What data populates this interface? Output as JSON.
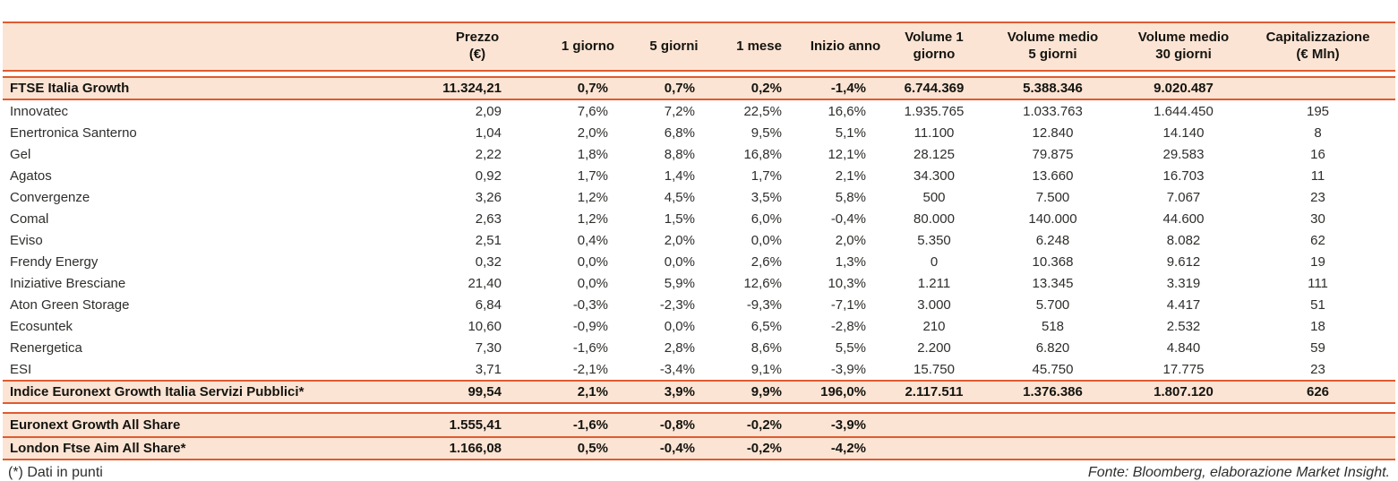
{
  "colors": {
    "accent": "#df5b2f",
    "row_highlight": "#fce4d4"
  },
  "table": {
    "columns": [
      {
        "key": "name",
        "label": ""
      },
      {
        "key": "prezzo",
        "label": "Prezzo\n(€)"
      },
      {
        "key": "giorno-1",
        "label": "1 giorno"
      },
      {
        "key": "giorni-5",
        "label": "5 giorni"
      },
      {
        "key": "mese-1",
        "label": "1 mese"
      },
      {
        "key": "inizio-anno",
        "label": "Inizio anno"
      },
      {
        "key": "volume-1-giorno",
        "label": "Volume 1\ngiorno"
      },
      {
        "key": "volume-medio-5-giorni",
        "label": "Volume medio\n5 giorni"
      },
      {
        "key": "volume-medio-30-giorni",
        "label": "Volume medio\n30 giorni"
      },
      {
        "key": "capitalizzazione",
        "label": "Capitalizzazione\n(€ Mln)"
      }
    ],
    "body": [
      {
        "name": "FTSE Italia Growth",
        "highlight": true,
        "cells": [
          "11.324,21",
          "0,7%",
          "0,7%",
          "0,2%",
          "-1,4%",
          "6.744.369",
          "5.388.346",
          "9.020.487",
          ""
        ]
      },
      {
        "name": "Innovatec",
        "highlight": false,
        "cells": [
          "2,09",
          "7,6%",
          "7,2%",
          "22,5%",
          "16,6%",
          "1.935.765",
          "1.033.763",
          "1.644.450",
          "195"
        ]
      },
      {
        "name": "Enertronica Santerno",
        "highlight": false,
        "cells": [
          "1,04",
          "2,0%",
          "6,8%",
          "9,5%",
          "5,1%",
          "11.100",
          "12.840",
          "14.140",
          "8"
        ]
      },
      {
        "name": "Gel",
        "highlight": false,
        "cells": [
          "2,22",
          "1,8%",
          "8,8%",
          "16,8%",
          "12,1%",
          "28.125",
          "79.875",
          "29.583",
          "16"
        ]
      },
      {
        "name": "Agatos",
        "highlight": false,
        "cells": [
          "0,92",
          "1,7%",
          "1,4%",
          "1,7%",
          "2,1%",
          "34.300",
          "13.660",
          "16.703",
          "11"
        ]
      },
      {
        "name": "Convergenze",
        "highlight": false,
        "cells": [
          "3,26",
          "1,2%",
          "4,5%",
          "3,5%",
          "5,8%",
          "500",
          "7.500",
          "7.067",
          "23"
        ]
      },
      {
        "name": "Comal",
        "highlight": false,
        "cells": [
          "2,63",
          "1,2%",
          "1,5%",
          "6,0%",
          "-0,4%",
          "80.000",
          "140.000",
          "44.600",
          "30"
        ]
      },
      {
        "name": "Eviso",
        "highlight": false,
        "cells": [
          "2,51",
          "0,4%",
          "2,0%",
          "0,0%",
          "2,0%",
          "5.350",
          "6.248",
          "8.082",
          "62"
        ]
      },
      {
        "name": "Frendy Energy",
        "highlight": false,
        "cells": [
          "0,32",
          "0,0%",
          "0,0%",
          "2,6%",
          "1,3%",
          "0",
          "10.368",
          "9.612",
          "19"
        ]
      },
      {
        "name": "Iniziative Bresciane",
        "highlight": false,
        "cells": [
          "21,40",
          "0,0%",
          "5,9%",
          "12,6%",
          "10,3%",
          "1.211",
          "13.345",
          "3.319",
          "111"
        ]
      },
      {
        "name": "Aton Green Storage",
        "highlight": false,
        "cells": [
          "6,84",
          "-0,3%",
          "-2,3%",
          "-9,3%",
          "-7,1%",
          "3.000",
          "5.700",
          "4.417",
          "51"
        ]
      },
      {
        "name": "Ecosuntek",
        "highlight": false,
        "cells": [
          "10,60",
          "-0,9%",
          "0,0%",
          "6,5%",
          "-2,8%",
          "210",
          "518",
          "2.532",
          "18"
        ]
      },
      {
        "name": "Renergetica",
        "highlight": false,
        "cells": [
          "7,30",
          "-1,6%",
          "2,8%",
          "8,6%",
          "5,5%",
          "2.200",
          "6.820",
          "4.840",
          "59"
        ]
      },
      {
        "name": "ESI",
        "highlight": false,
        "cells": [
          "3,71",
          "-2,1%",
          "-3,4%",
          "9,1%",
          "-3,9%",
          "15.750",
          "45.750",
          "17.775",
          "23"
        ]
      },
      {
        "name": "Indice Euronext Growth Italia Servizi Pubblici*",
        "highlight": true,
        "cells": [
          "99,54",
          "2,1%",
          "3,9%",
          "9,9%",
          "196,0%",
          "2.117.511",
          "1.376.386",
          "1.807.120",
          "626"
        ]
      }
    ],
    "benchmarks": [
      {
        "name": "Euronext Growth All Share",
        "highlight": true,
        "cells": [
          "1.555,41",
          "-1,6%",
          "-0,8%",
          "-0,2%",
          "-3,9%",
          "",
          "",
          "",
          ""
        ]
      },
      {
        "name": "London Ftse Aim All Share*",
        "highlight": true,
        "cells": [
          "1.166,08",
          "0,5%",
          "-0,4%",
          "-0,2%",
          "-4,2%",
          "",
          "",
          "",
          ""
        ]
      }
    ]
  },
  "notes": {
    "left": "(*) Dati in punti",
    "right": "Fonte: Bloomberg, elaborazione Market Insight."
  }
}
